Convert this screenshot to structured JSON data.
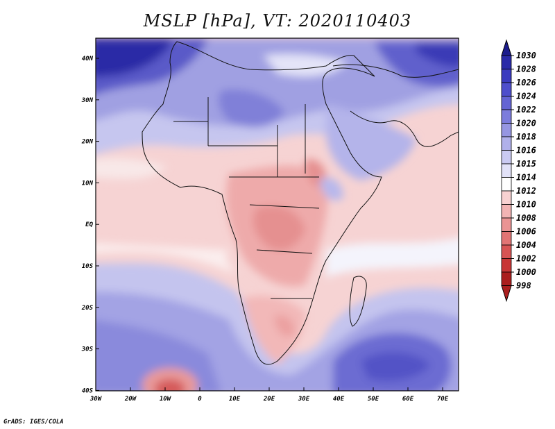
{
  "title": "MSLP [hPa], VT: 2020110403",
  "credit": "GrADS: IGES/COLA",
  "map": {
    "lon_ticks": [
      "30W",
      "20W",
      "10W",
      "0",
      "10E",
      "20E",
      "30E",
      "40E",
      "50E",
      "60E",
      "70E"
    ],
    "lat_ticks": [
      "40N",
      "30N",
      "20N",
      "10N",
      "EQ",
      "10S",
      "20S",
      "30S",
      "40S"
    ]
  },
  "colorbar": {
    "levels": [
      "1030",
      "1028",
      "1026",
      "1024",
      "1022",
      "1020",
      "1018",
      "1016",
      "1015",
      "1014",
      "1012",
      "1010",
      "1008",
      "1006",
      "1004",
      "1002",
      "1000",
      "998"
    ],
    "colors": [
      "#1c1c8c",
      "#2a2aa8",
      "#3b3bbf",
      "#4e4ecc",
      "#6464d4",
      "#7c7cdc",
      "#9696e2",
      "#b0b0ea",
      "#cacaf2",
      "#e2e2f8",
      "#ffffff",
      "#f8d2d2",
      "#f2b4b4",
      "#ea9494",
      "#e27474",
      "#d85454",
      "#c83636",
      "#aa1e1e"
    ]
  }
}
